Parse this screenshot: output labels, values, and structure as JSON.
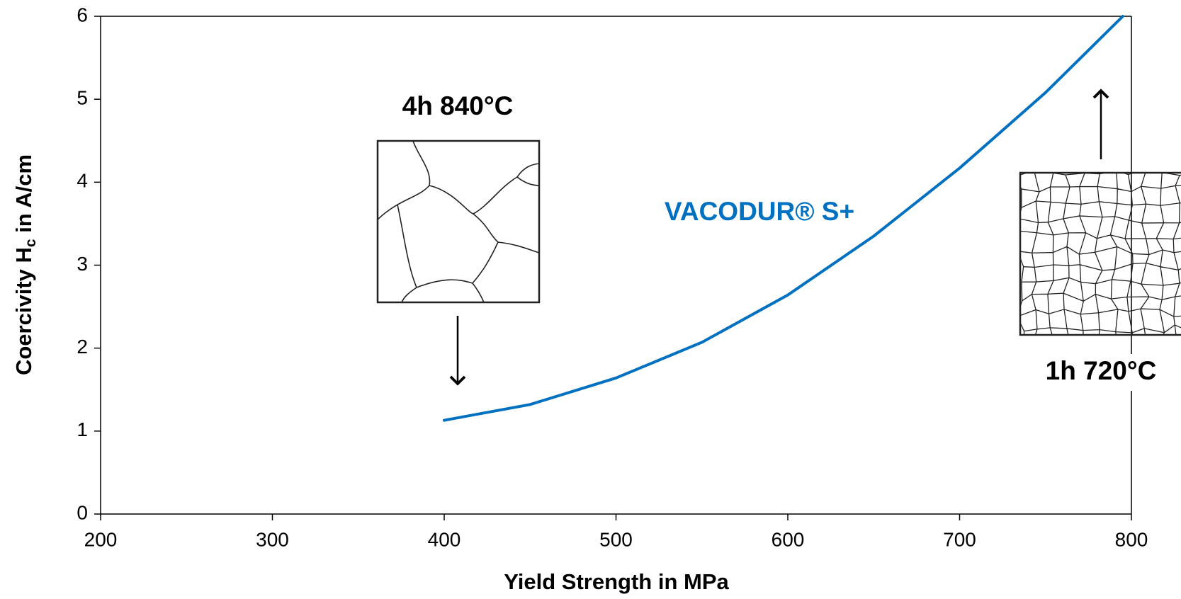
{
  "chart_data": {
    "type": "line",
    "xlabel": "Yield Strength in MPa",
    "ylabel": {
      "main": "Coercivity H",
      "sub": "c",
      "rest": " in A/cm"
    },
    "x": [
      400,
      450,
      500,
      550,
      600,
      650,
      700,
      750,
      795
    ],
    "series": [
      {
        "name": "VACODUR® S+",
        "color": "#0070c0",
        "values": [
          1.13,
          1.32,
          1.64,
          2.07,
          2.64,
          3.35,
          4.17,
          5.08,
          6.0
        ]
      }
    ],
    "xlim": [
      200,
      800
    ],
    "ylim": [
      0,
      6
    ],
    "xticks": [
      200,
      300,
      400,
      500,
      600,
      700,
      800
    ],
    "yticks": [
      0,
      1,
      2,
      3,
      4,
      5,
      6
    ],
    "annotations": [
      "4h 840°C",
      "1h 720°C"
    ]
  }
}
